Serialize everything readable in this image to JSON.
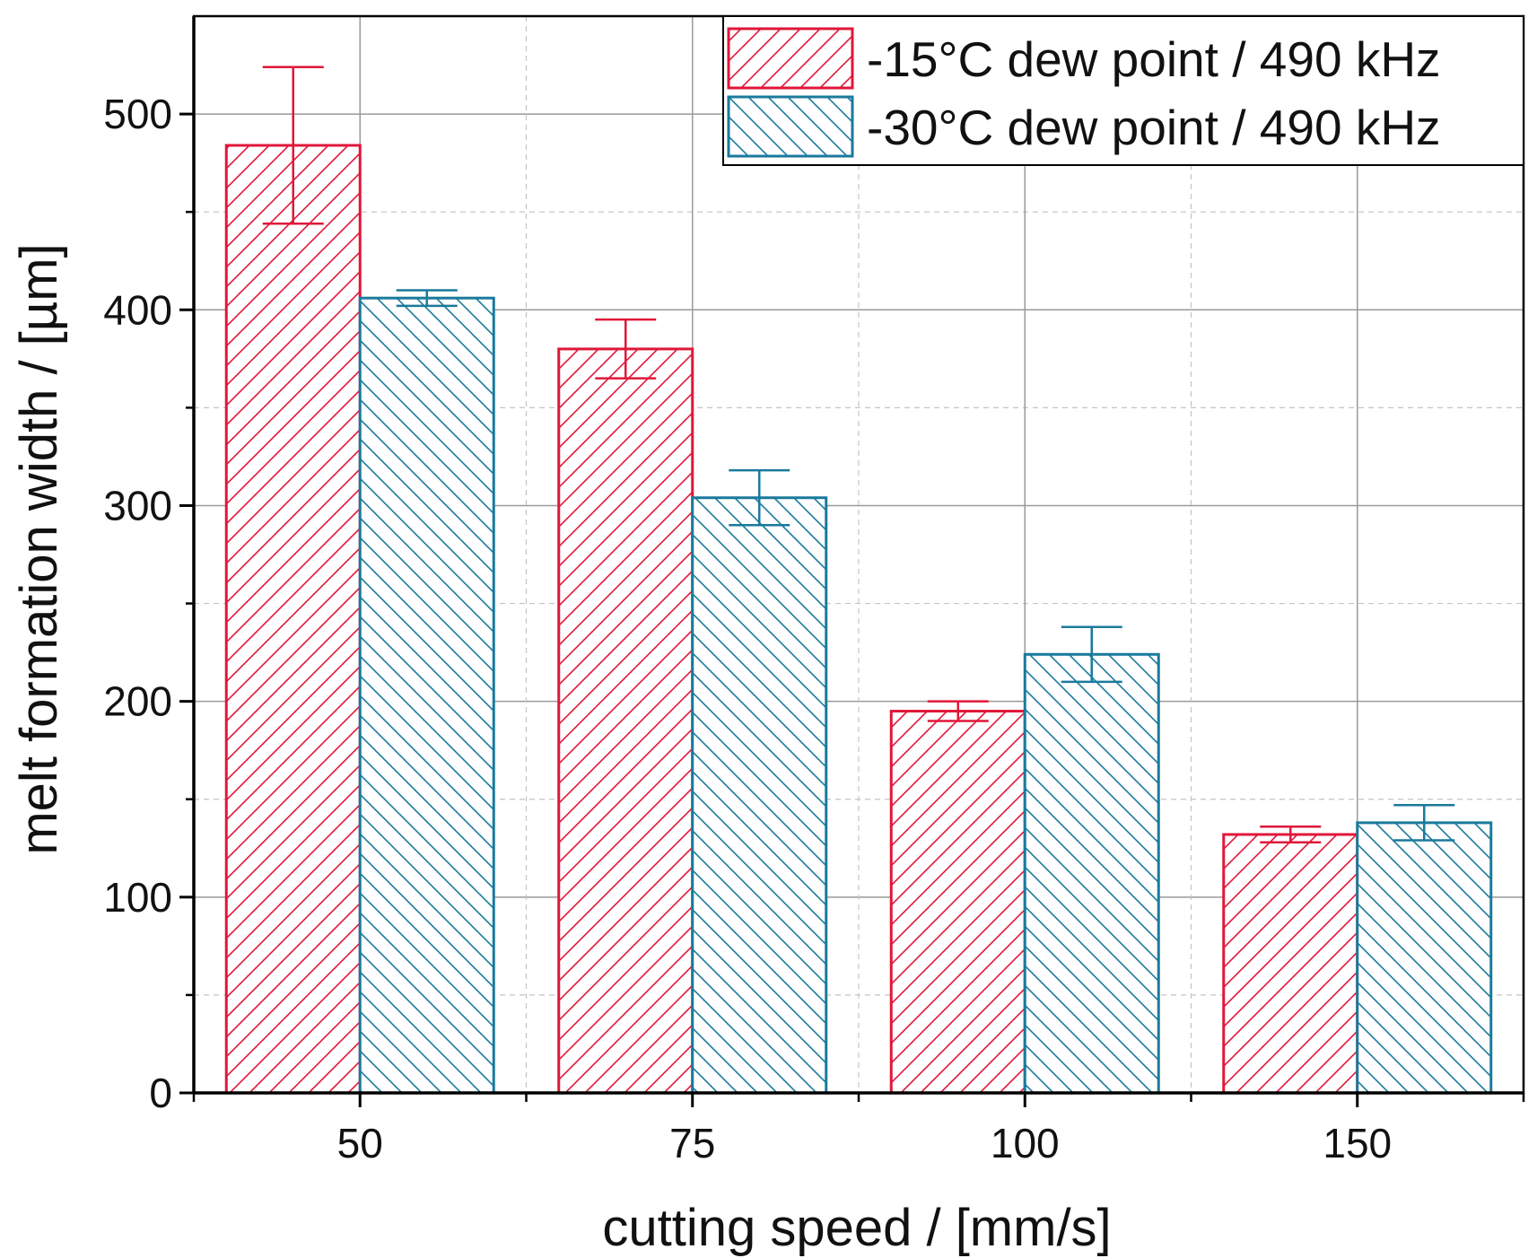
{
  "chart_data": {
    "type": "bar",
    "title": "",
    "xlabel": "cutting speed  /  [mm/s]",
    "ylabel": "melt formation width  /  [µm]",
    "categories": [
      "50",
      "75",
      "100",
      "150"
    ],
    "ylim": [
      0,
      550
    ],
    "y_ticks": [
      0,
      100,
      200,
      300,
      400,
      500
    ],
    "y_tick_labels": [
      "0",
      "100",
      "200",
      "300",
      "400",
      "500"
    ],
    "grid": true,
    "legend_position": "top-right",
    "series": [
      {
        "name": "-15°C dew point / 490 kHz",
        "color": "#e0173a",
        "pattern": "diagonal-up",
        "values": [
          484,
          380,
          195,
          132
        ],
        "errors": [
          40,
          15,
          5,
          4
        ]
      },
      {
        "name": "-30°C dew point / 490 kHz",
        "color": "#1a7a9c",
        "pattern": "diagonal-down",
        "values": [
          406,
          304,
          224,
          138
        ],
        "errors": [
          4,
          14,
          14,
          9
        ]
      }
    ]
  }
}
